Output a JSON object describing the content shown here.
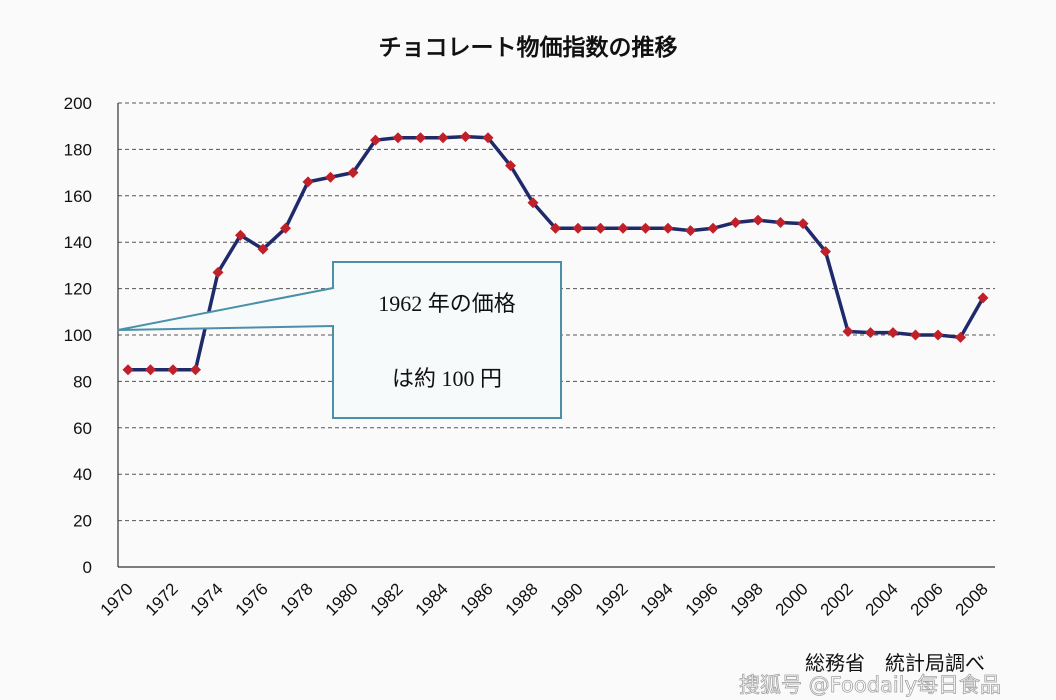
{
  "chart_data": {
    "type": "line",
    "title": "チョコレート物価指数の推移",
    "xlabel": "",
    "ylabel": "",
    "ylim": [
      0,
      200
    ],
    "yticks": [
      0,
      20,
      40,
      60,
      80,
      100,
      120,
      140,
      160,
      180,
      200
    ],
    "xticks": [
      1970,
      1972,
      1974,
      1976,
      1978,
      1980,
      1982,
      1984,
      1986,
      1988,
      1990,
      1992,
      1994,
      1996,
      1998,
      2000,
      2002,
      2004,
      2006,
      2008
    ],
    "grid": "horizontal-dashed",
    "series": [
      {
        "name": "チョコレート物価指数",
        "line_color": "#1f2a6b",
        "marker_color": "#c0202a",
        "x": [
          1970,
          1971,
          1972,
          1973,
          1974,
          1975,
          1976,
          1977,
          1978,
          1979,
          1980,
          1981,
          1982,
          1983,
          1984,
          1985,
          1986,
          1987,
          1988,
          1989,
          1990,
          1991,
          1992,
          1993,
          1994,
          1995,
          1996,
          1997,
          1998,
          1999,
          2000,
          2001,
          2002,
          2003,
          2004,
          2005,
          2006,
          2007,
          2008
        ],
        "values": [
          85,
          85,
          85,
          85,
          127,
          143,
          137,
          146,
          166,
          168,
          170,
          184,
          185,
          185,
          185,
          185.5,
          185,
          173,
          157,
          146,
          146,
          146,
          146,
          146,
          146,
          145,
          146,
          148.5,
          149.5,
          148.5,
          148,
          136,
          101.5,
          101,
          101,
          100,
          100,
          99,
          116
        ]
      }
    ],
    "annotation": {
      "line1": "1962 年の価格",
      "line2": "は約 100 円",
      "points_to_value": 102
    },
    "source": "総務省　統計局調べ",
    "watermark": "搜狐号 @Foodaily每日食品"
  }
}
